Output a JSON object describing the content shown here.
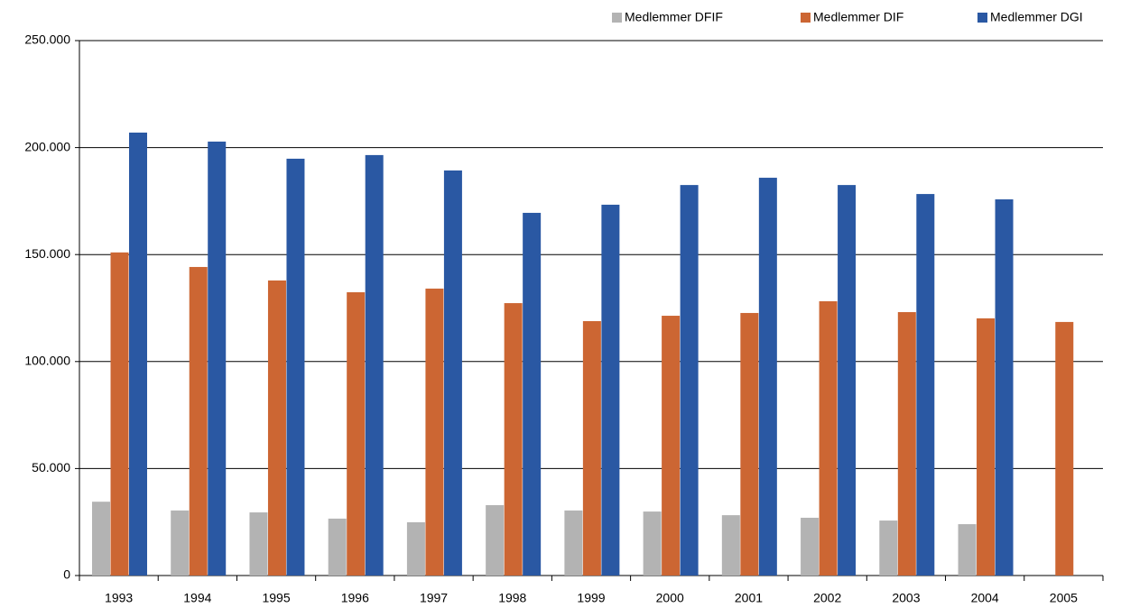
{
  "chart_data": {
    "type": "bar",
    "categories": [
      "1993",
      "1994",
      "1995",
      "1996",
      "1997",
      "1998",
      "1999",
      "2000",
      "2001",
      "2002",
      "2003",
      "2004",
      "2005"
    ],
    "series": [
      {
        "name": "Medlemmer DFIF",
        "color": "#b3b3b3",
        "values": [
          34500,
          30400,
          29500,
          26600,
          24900,
          32900,
          30400,
          29900,
          28200,
          27000,
          25700,
          24000,
          null
        ]
      },
      {
        "name": "Medlemmer DIF",
        "color": "#cc6633",
        "values": [
          151000,
          144200,
          137900,
          132400,
          134100,
          127300,
          118900,
          121400,
          122700,
          128200,
          123100,
          120200,
          118500
        ]
      },
      {
        "name": "Medlemmer DGI",
        "color": "#2a58a3",
        "values": [
          207000,
          202800,
          194800,
          196500,
          189300,
          169500,
          173300,
          182500,
          185900,
          182500,
          178300,
          175800,
          null
        ]
      }
    ],
    "ylim": [
      0,
      250000
    ],
    "yticks": [
      0,
      {
        "value": 50000,
        "label": "50.000"
      },
      {
        "value": 100000,
        "label": "100.000"
      },
      {
        "value": 150000,
        "label": "150.000"
      },
      {
        "value": 200000,
        "label": "200.000"
      },
      {
        "value": 250000,
        "label": "250.000"
      }
    ],
    "grid": true,
    "legend": "top-right"
  }
}
